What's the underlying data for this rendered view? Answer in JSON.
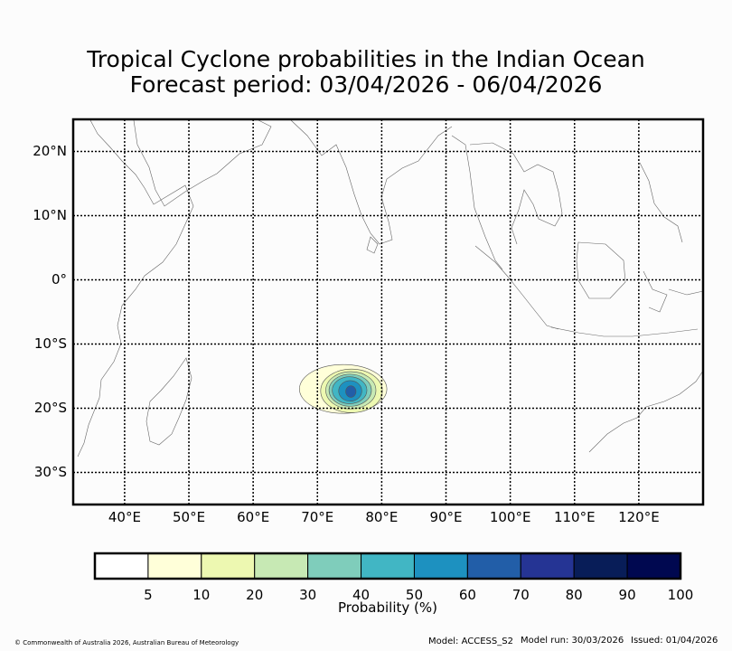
{
  "title": {
    "line1": "Tropical Cyclone probabilities in the Indian Ocean",
    "line2": "Forecast period: 03/04/2026 - 06/04/2026"
  },
  "map": {
    "lon_range": [
      32,
      130
    ],
    "lat_range": [
      -35,
      25
    ],
    "lat_labels": [
      {
        "value": 20,
        "label": "20°N"
      },
      {
        "value": 10,
        "label": "10°N"
      },
      {
        "value": 0,
        "label": "0°"
      },
      {
        "value": -10,
        "label": "10°S"
      },
      {
        "value": -20,
        "label": "20°S"
      },
      {
        "value": -30,
        "label": "30°S"
      }
    ],
    "lon_labels": [
      {
        "value": 40,
        "label": "40°E"
      },
      {
        "value": 50,
        "label": "50°E"
      },
      {
        "value": 60,
        "label": "60°E"
      },
      {
        "value": 70,
        "label": "70°E"
      },
      {
        "value": 80,
        "label": "80°E"
      },
      {
        "value": 90,
        "label": "90°E"
      },
      {
        "value": 100,
        "label": "100°E"
      },
      {
        "value": 110,
        "label": "110°E"
      },
      {
        "value": 120,
        "label": "120°E"
      }
    ]
  },
  "probability_field": {
    "center_lon": 75.0,
    "center_lat": -17.2,
    "levels": [
      {
        "min": 5,
        "color": "#ffffd9",
        "rx": 6.8,
        "ry": 3.8,
        "dx": -1.0,
        "dy": 0.2
      },
      {
        "min": 10,
        "color": "#edf8b1",
        "rx": 4.8,
        "ry": 3.4,
        "dx": 0.3,
        "dy": -0.1
      },
      {
        "min": 20,
        "color": "#c7e9b4",
        "rx": 3.9,
        "ry": 2.9,
        "dx": 0.2,
        "dy": 0.0
      },
      {
        "min": 30,
        "color": "#7fcdbb",
        "rx": 3.3,
        "ry": 2.5,
        "dx": 0.1,
        "dy": 0.0
      },
      {
        "min": 40,
        "color": "#41b6c4",
        "rx": 2.7,
        "ry": 2.1,
        "dx": 0.0,
        "dy": 0.0
      },
      {
        "min": 50,
        "color": "#1d91c0",
        "rx": 1.8,
        "ry": 1.6,
        "dx": 0.1,
        "dy": -0.1
      },
      {
        "min": 60,
        "color": "#225ea8",
        "rx": 0.8,
        "ry": 0.9,
        "dx": 0.2,
        "dy": -0.2
      }
    ]
  },
  "colorbar": {
    "colors": [
      "#ffffff",
      "#ffffd9",
      "#edf8b1",
      "#c7e9b4",
      "#7fcdbb",
      "#41b6c4",
      "#1d91c0",
      "#225ea8",
      "#253494",
      "#081d58",
      "#000850"
    ],
    "ticks": [
      "5",
      "10",
      "20",
      "30",
      "40",
      "50",
      "60",
      "70",
      "80",
      "90",
      "100"
    ],
    "label": "Probability (%)"
  },
  "footer": {
    "copyright": "© Commonwealth of Australia 2026, Australian Bureau of Meteorology",
    "model": "Model: ACCESS_S2",
    "model_run": "Model run: 30/03/2026",
    "issued": "Issued: 01/04/2026"
  }
}
